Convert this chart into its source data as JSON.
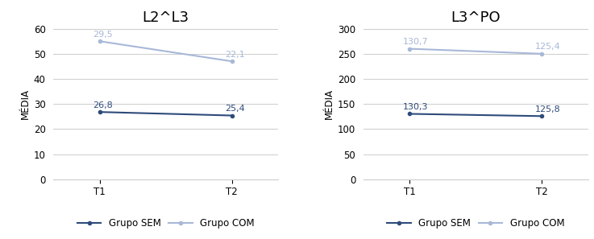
{
  "chart1": {
    "title": "L2^L3",
    "x_labels": [
      "T1",
      "T2"
    ],
    "sem_values": [
      26.8,
      25.4
    ],
    "com_values": [
      55.0,
      47.0
    ],
    "com_labels": [
      "29,5",
      "22,1"
    ],
    "sem_labels": [
      "26,8",
      "25,4"
    ],
    "ylim": [
      0,
      60
    ],
    "yticks": [
      0,
      10,
      20,
      30,
      40,
      50,
      60
    ],
    "ylabel": "MÉDIA"
  },
  "chart2": {
    "title": "L3^PO",
    "x_labels": [
      "T1",
      "T2"
    ],
    "sem_values": [
      130.3,
      125.8
    ],
    "com_values": [
      260.0,
      250.0
    ],
    "com_labels": [
      "130,7",
      "125,4"
    ],
    "sem_labels": [
      "130,3",
      "125,8"
    ],
    "ylim": [
      0,
      300
    ],
    "yticks": [
      0,
      50,
      100,
      150,
      200,
      250,
      300
    ],
    "ylabel": "MÉDIA"
  },
  "color_sem": "#2e4b7a",
  "color_com": "#a8b8d8",
  "legend_sem": "Grupo SEM",
  "legend_com": "Grupo COM",
  "bg_color": "#ffffff",
  "linewidth": 1.5,
  "marker": "o",
  "markersize": 3,
  "label_fontsize": 8,
  "title_fontsize": 13,
  "tick_fontsize": 8.5,
  "ylabel_fontsize": 8.5
}
